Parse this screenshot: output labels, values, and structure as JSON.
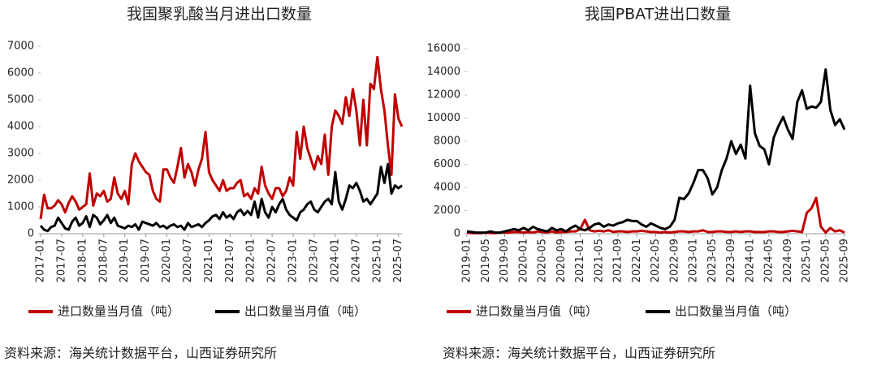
{
  "chart_data": [
    {
      "type": "line",
      "title": "我国聚乳酸当月进出口数量",
      "source": "资料来源：海关统计数据平台，山西证券研究所",
      "categories": [
        "2017-01",
        null,
        null,
        null,
        null,
        null,
        "2017-07",
        null,
        null,
        null,
        null,
        null,
        "2018-01",
        null,
        null,
        null,
        null,
        null,
        "2018-07",
        null,
        null,
        null,
        null,
        null,
        "2019-01",
        null,
        null,
        null,
        null,
        null,
        "2019-07",
        null,
        null,
        null,
        null,
        null,
        "2020-01",
        null,
        null,
        null,
        null,
        null,
        "2020-07",
        null,
        null,
        null,
        null,
        null,
        "2021-01",
        null,
        null,
        null,
        null,
        null,
        "2021-07",
        null,
        null,
        null,
        null,
        null,
        "2022-01",
        null,
        null,
        null,
        null,
        null,
        "2022-07",
        null,
        null,
        null,
        null,
        null,
        "2023-01",
        null,
        null,
        null,
        null,
        null,
        "2023-07",
        null,
        null,
        null,
        null,
        null,
        "2024-01",
        null,
        null,
        null,
        null,
        null,
        "2024-07",
        null,
        null,
        null,
        null,
        null,
        "2025-01",
        null,
        null,
        null,
        null,
        null,
        "2025-07",
        null
      ],
      "series": [
        {
          "name": "进口数量当月值（吨）",
          "color": "#c00000",
          "values": [
            550,
            1450,
            950,
            950,
            1050,
            1250,
            1100,
            800,
            1150,
            1400,
            1200,
            900,
            1000,
            1100,
            2250,
            1050,
            1500,
            1400,
            1600,
            1200,
            1300,
            2100,
            1500,
            1300,
            1600,
            1100,
            2600,
            3000,
            2700,
            2500,
            2300,
            2200,
            1600,
            1300,
            1200,
            2400,
            2400,
            2100,
            1900,
            2500,
            3200,
            2100,
            2600,
            2300,
            1800,
            2400,
            2800,
            3800,
            2300,
            2000,
            1800,
            1600,
            2000,
            1600,
            1700,
            1700,
            1900,
            2000,
            1400,
            1500,
            1300,
            1700,
            1500,
            2500,
            1800,
            1500,
            1300,
            1700,
            1700,
            1400,
            1600,
            2100,
            1800,
            3800,
            2800,
            4000,
            3200,
            2800,
            2400,
            2900,
            2600,
            3700,
            2200,
            4000,
            4600,
            4400,
            4100,
            5100,
            4400,
            5400,
            4600,
            3300,
            5000,
            3300,
            5600,
            5400,
            6600,
            5400,
            4600,
            3300,
            2200,
            5200,
            4300,
            4000
          ]
        },
        {
          "name": "出口数量当月值（吨）",
          "color": "#000000",
          "values": [
            300,
            150,
            100,
            250,
            300,
            600,
            400,
            200,
            150,
            450,
            600,
            300,
            400,
            650,
            250,
            700,
            600,
            350,
            500,
            700,
            400,
            600,
            300,
            250,
            200,
            300,
            250,
            350,
            150,
            450,
            400,
            350,
            300,
            400,
            250,
            300,
            200,
            300,
            350,
            250,
            300,
            150,
            400,
            250,
            300,
            350,
            250,
            400,
            500,
            650,
            700,
            550,
            800,
            600,
            700,
            550,
            800,
            900,
            700,
            850,
            700,
            1200,
            600,
            1300,
            800,
            600,
            1000,
            800,
            1100,
            1300,
            900,
            700,
            600,
            500,
            800,
            900,
            1100,
            1200,
            900,
            800,
            1000,
            1200,
            1300,
            1100,
            2300,
            1200,
            900,
            1300,
            1800,
            1700,
            1900,
            1600,
            1200,
            1300,
            1100,
            1300,
            1500,
            2500,
            1900,
            2600,
            1500,
            1800,
            1700,
            1800
          ]
        }
      ],
      "ylim": [
        0,
        7000
      ],
      "yticks": [
        0,
        1000,
        2000,
        3000,
        4000,
        5000,
        6000,
        7000
      ]
    },
    {
      "type": "line",
      "title": "我国PBAT进出口数量",
      "source": "资料来源：海关统计数据平台，山西证券研究所",
      "categories": [
        "2019-01",
        null,
        null,
        null,
        "2019-05",
        null,
        null,
        null,
        "2019-09",
        null,
        null,
        null,
        "2020-01",
        null,
        null,
        null,
        "2020-05",
        null,
        null,
        null,
        "2020-09",
        null,
        null,
        null,
        "2021-01",
        null,
        null,
        null,
        "2021-05",
        null,
        null,
        null,
        "2021-09",
        null,
        null,
        null,
        "2022-01",
        null,
        null,
        null,
        "2022-05",
        null,
        null,
        null,
        "2022-09",
        null,
        null,
        null,
        "2023-01",
        null,
        null,
        null,
        "2023-05",
        null,
        null,
        null,
        "2023-09",
        null,
        null,
        null,
        "2024-01",
        null,
        null,
        null,
        "2024-05",
        null,
        null,
        null,
        "2024-09",
        null,
        null,
        null,
        "2025-01",
        null,
        null,
        null,
        "2025-05",
        null,
        null,
        null,
        "2025-09"
      ],
      "series": [
        {
          "name": "进口数量当月值（吨）",
          "color": "#c00000",
          "values": [
            100,
            50,
            50,
            50,
            100,
            50,
            50,
            100,
            100,
            100,
            150,
            150,
            100,
            150,
            100,
            200,
            150,
            100,
            200,
            100,
            150,
            150,
            200,
            200,
            400,
            1200,
            300,
            200,
            250,
            200,
            300,
            150,
            200,
            200,
            150,
            200,
            200,
            250,
            200,
            150,
            150,
            100,
            150,
            100,
            150,
            200,
            200,
            150,
            200,
            200,
            300,
            150,
            150,
            200,
            200,
            150,
            150,
            200,
            150,
            200,
            200,
            150,
            150,
            150,
            200,
            200,
            150,
            150,
            200,
            250,
            200,
            150,
            1800,
            2200,
            3100,
            600,
            100,
            500,
            200,
            300,
            100
          ]
        },
        {
          "name": "出口数量当月值（吨）",
          "color": "#000000",
          "values": [
            200,
            150,
            100,
            100,
            100,
            200,
            100,
            100,
            200,
            300,
            400,
            300,
            500,
            300,
            600,
            400,
            300,
            200,
            500,
            300,
            400,
            200,
            500,
            700,
            400,
            300,
            500,
            800,
            900,
            600,
            800,
            700,
            900,
            1000,
            1200,
            1100,
            1100,
            800,
            600,
            900,
            700,
            500,
            400,
            600,
            1200,
            3100,
            3000,
            3500,
            4400,
            5500,
            5500,
            4800,
            3400,
            4000,
            5500,
            6500,
            8000,
            6900,
            7700,
            6500,
            12800,
            8700,
            7600,
            7300,
            6000,
            8300,
            9300,
            10100,
            9000,
            8200,
            11400,
            12400,
            10800,
            11000,
            10900,
            11400,
            14200,
            10700,
            9400,
            9900,
            9000
          ]
        }
      ],
      "ylim": [
        0,
        16000
      ],
      "yticks": [
        0,
        2000,
        4000,
        6000,
        8000,
        10000,
        12000,
        14000,
        16000
      ]
    }
  ]
}
